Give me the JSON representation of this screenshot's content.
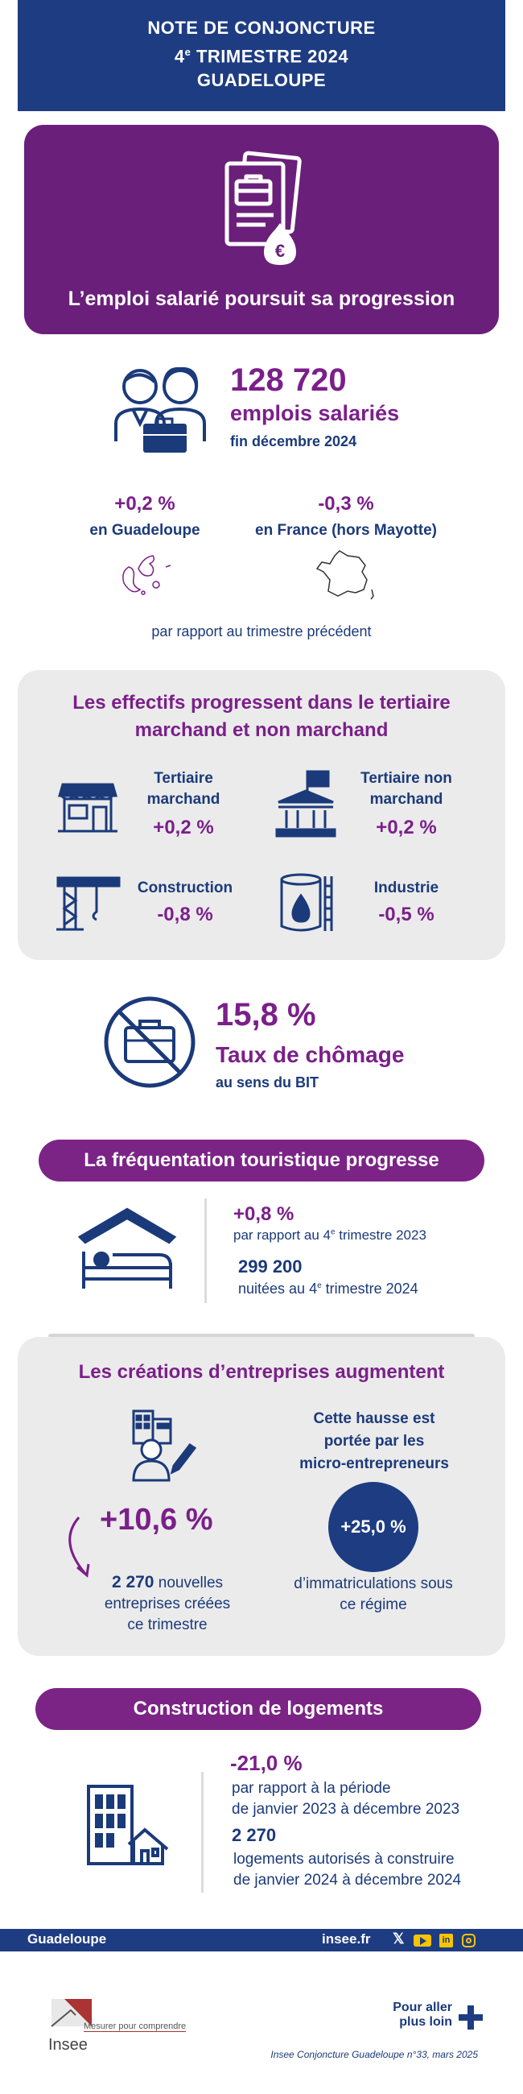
{
  "header": {
    "line1": "NOTE DE CONJONCTURE",
    "line2_num": "4",
    "line2_sup": "e",
    "line2_rest": " TRIMESTRE 2024",
    "line3": "GUADELOUPE"
  },
  "hero": {
    "title": "L’emploi salarié poursuit sa progression"
  },
  "employment": {
    "value": "128 720",
    "label": "emplois salariés",
    "sub": "fin décembre 2024",
    "guadeloupe_change": "+0,2 %",
    "guadeloupe_label": "en Guadeloupe",
    "france_change": "-0,3 %",
    "france_label": "en France (hors Mayotte)",
    "note": "par rapport au trimestre précédent"
  },
  "sectors": {
    "title": "Les effectifs progressent dans le tertiaire marchand et non marchand",
    "items": [
      {
        "label": "Tertiaire marchand",
        "value": "+0,2 %"
      },
      {
        "label": "Tertiaire non marchand",
        "value": "+0,2 %"
      },
      {
        "label": "Construction",
        "value": "-0,8 %"
      },
      {
        "label": "Industrie",
        "value": "-0,5 %"
      }
    ]
  },
  "unemployment": {
    "value": "15,8 %",
    "label": "Taux de chômage",
    "sub": "au sens du BIT"
  },
  "tourism": {
    "title": "La fréquentation touristique progresse",
    "change": "+0,8 %",
    "change_pre": "par rapport au 4",
    "change_sup": "e",
    "change_post": " trimestre 2023",
    "nights": "299 200",
    "nights_pre": "nuitées au 4",
    "nights_sup": "e",
    "nights_post": " trimestre 2024"
  },
  "business": {
    "title": "Les créations d’entreprises augmentent",
    "change": "+10,6 %",
    "count": "2 270",
    "count_label_1": "nouvelles",
    "count_label_2": "entreprises créées",
    "count_label_3": "ce trimestre",
    "micro_1": "Cette hausse est",
    "micro_2": "portée par les",
    "micro_3": "micro-entrepreneurs",
    "micro_change": "+25,0 %",
    "micro_label_1": "d’immatriculations sous",
    "micro_label_2": "ce régime"
  },
  "housing": {
    "title": "Construction de logements",
    "change": "-21,0 %",
    "change_label_1": "par rapport à la période",
    "change_label_2": "de janvier 2023 à décembre 2023",
    "count": "2 270",
    "count_label_1": "logements autorisés à construire",
    "count_label_2": "de janvier 2024 à décembre 2024"
  },
  "footer": {
    "region": "Guadeloupe",
    "site": "insee.fr",
    "logo_text": "Insee",
    "tagline": "Mesurer pour comprendre",
    "more_1": "Pour aller",
    "more_2": "plus loin",
    "citation": "Insee Conjoncture Guadeloupe n°33, mars 2025"
  },
  "colors": {
    "navy": "#1e3c82",
    "purple": "#7b1f8a",
    "grey": "#ebebeb"
  },
  "icons": [
    "documents-money-icon",
    "workers-icon",
    "guadeloupe-map-icon",
    "france-map-icon",
    "shop-icon",
    "public-building-icon",
    "crane-icon",
    "factory-tank-icon",
    "no-briefcase-icon",
    "house-bed-icon",
    "entrepreneur-icon",
    "curved-arrow-icon",
    "building-house-icon",
    "x-icon",
    "youtube-icon",
    "linkedin-icon",
    "instagram-icon",
    "plus-icon"
  ]
}
